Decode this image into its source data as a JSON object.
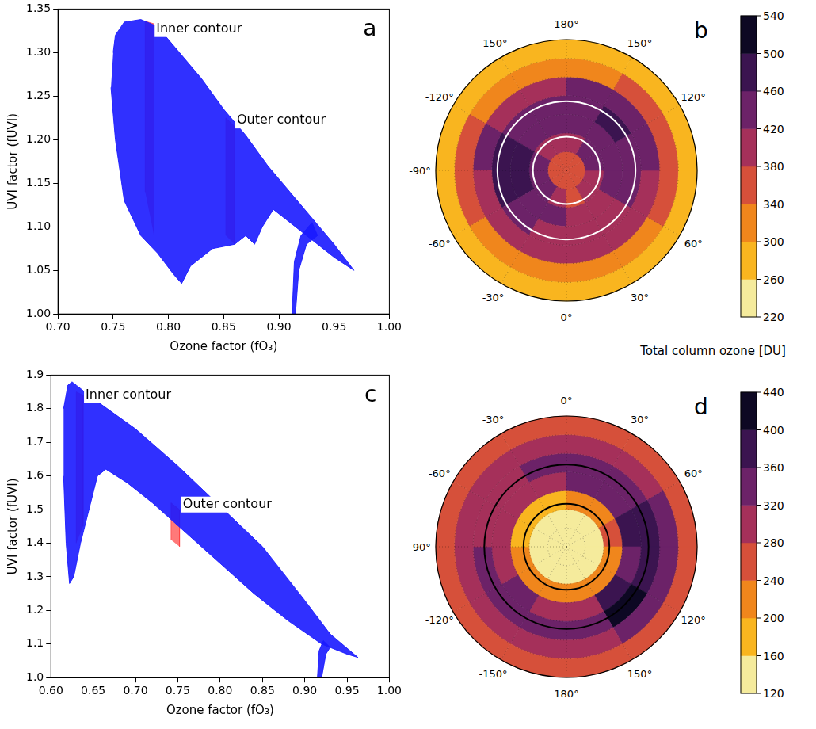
{
  "chart_data": [
    {
      "type": "scatter",
      "panel": "a",
      "x_label": "Ozone factor (fO₃)",
      "y_label": "UVI factor (fUVI)",
      "xlim": [
        0.7,
        1.0
      ],
      "ylim": [
        1.0,
        1.35
      ],
      "xticks": [
        {
          "value": 0.7,
          "label": "0.70"
        },
        {
          "value": 0.75,
          "label": "0.75"
        },
        {
          "value": 0.8,
          "label": "0.80"
        },
        {
          "value": 0.85,
          "label": "0.85"
        },
        {
          "value": 0.9,
          "label": "0.90"
        },
        {
          "value": 0.95,
          "label": "0.95"
        },
        {
          "value": 1.0,
          "label": "1.00"
        }
      ],
      "yticks": [
        {
          "value": 1.0,
          "label": "1.00"
        },
        {
          "value": 1.05,
          "label": "1.05"
        },
        {
          "value": 1.1,
          "label": "1.10"
        },
        {
          "value": 1.15,
          "label": "1.15"
        },
        {
          "value": 1.2,
          "label": "1.20"
        },
        {
          "value": 1.25,
          "label": "1.25"
        },
        {
          "value": 1.3,
          "label": "1.30"
        },
        {
          "value": 1.35,
          "label": "1.35"
        }
      ],
      "grid": false,
      "series": [
        {
          "type": "area",
          "color": "#1a1aff",
          "x": [
            0.75,
            0.752,
            0.76,
            0.775,
            0.79,
            0.81,
            0.83,
            0.85,
            0.87,
            0.89,
            0.91,
            0.93,
            0.95,
            0.968,
            0.95,
            0.93,
            0.91,
            0.895,
            0.885,
            0.878,
            0.87,
            0.86,
            0.84,
            0.82,
            0.812,
            0.805,
            0.79,
            0.775,
            0.76,
            0.752,
            0.748
          ],
          "y": [
            1.3,
            1.32,
            1.335,
            1.338,
            1.33,
            1.3,
            1.27,
            1.235,
            1.205,
            1.17,
            1.14,
            1.11,
            1.08,
            1.05,
            1.065,
            1.085,
            1.105,
            1.12,
            1.1,
            1.08,
            1.09,
            1.08,
            1.075,
            1.055,
            1.035,
            1.045,
            1.07,
            1.09,
            1.13,
            1.2,
            1.26
          ]
        },
        {
          "type": "area",
          "color": "#1a1aff",
          "x": [
            0.912,
            0.914,
            0.92,
            0.93,
            0.935,
            0.925,
            0.918,
            0.915
          ],
          "y": [
            1.0,
            1.06,
            1.09,
            1.105,
            1.09,
            1.08,
            1.05,
            1.0
          ]
        },
        {
          "type": "area",
          "color": "#ff4040",
          "x": [
            0.779,
            0.779,
            0.787,
            0.787
          ],
          "y": [
            1.14,
            1.336,
            1.333,
            1.09
          ]
        },
        {
          "type": "area",
          "color": "#ff4040",
          "x": [
            0.852,
            0.852,
            0.86,
            0.86
          ],
          "y": [
            1.09,
            1.225,
            1.215,
            1.08
          ]
        }
      ],
      "annotations": [
        {
          "text": "Inner contour",
          "x": 0.789,
          "y": 1.327
        },
        {
          "text": "Outer contour",
          "x": 0.862,
          "y": 1.222
        }
      ]
    },
    {
      "type": "map",
      "panel": "b",
      "latlim": [
        20,
        90
      ],
      "lat_edges": [
        90,
        80,
        70,
        60,
        50,
        40,
        30,
        20
      ],
      "lon_edges": [
        -180,
        -150,
        -120,
        -90,
        -60,
        -30,
        0,
        30,
        60,
        90,
        120,
        150,
        180
      ],
      "values": [
        [
          360,
          360,
          370,
          370,
          360,
          350,
          350,
          360,
          360,
          360,
          360,
          360
        ],
        [
          400,
          410,
          440,
          450,
          420,
          390,
          370,
          380,
          400,
          420,
          420,
          400
        ],
        [
          430,
          440,
          470,
          480,
          450,
          420,
          400,
          410,
          420,
          440,
          450,
          430
        ],
        [
          440,
          430,
          460,
          470,
          440,
          410,
          400,
          410,
          430,
          450,
          460,
          450
        ],
        [
          400,
          390,
          420,
          410,
          400,
          380,
          380,
          390,
          410,
          420,
          430,
          420
        ],
        [
          320,
          320,
          340,
          340,
          330,
          320,
          320,
          330,
          340,
          340,
          340,
          330
        ],
        [
          270,
          270,
          280,
          280,
          270,
          270,
          270,
          280,
          280,
          290,
          290,
          280
        ]
      ],
      "lon_labels": [
        {
          "value": 180,
          "label": "180°"
        },
        {
          "value": -150,
          "label": "-150°"
        },
        {
          "value": 150,
          "label": "150°"
        },
        {
          "value": -120,
          "label": "-120°"
        },
        {
          "value": 120,
          "label": "120°"
        },
        {
          "value": -90,
          "label": "-90°"
        },
        {
          "value": 60,
          "label": "60°"
        },
        {
          "value": -60,
          "label": "-60°"
        },
        {
          "value": 30,
          "label": "30°"
        },
        {
          "value": -30,
          "label": "-30°"
        },
        {
          "value": 0,
          "label": "0°"
        }
      ],
      "contours": {
        "values": [
          53,
          72
        ],
        "color": "#ffffff"
      },
      "grid": true,
      "colorbar": {
        "range": [
          220,
          540
        ],
        "ticks": [
          220,
          260,
          300,
          340,
          380,
          420,
          460,
          500,
          540
        ],
        "colors": [
          "#f5eb9c",
          "#f9b51f",
          "#f0861c",
          "#d6503a",
          "#a5305a",
          "#6c2268",
          "#3b1450",
          "#0d0823"
        ],
        "label": "Total column ozone [DU]"
      }
    },
    {
      "type": "scatter",
      "panel": "c",
      "x_label": "Ozone factor (fO₃)",
      "y_label": "UVI factor (fUVI)",
      "xlim": [
        0.6,
        1.0
      ],
      "ylim": [
        1.0,
        1.9
      ],
      "xticks": [
        {
          "value": 0.6,
          "label": "0.60"
        },
        {
          "value": 0.65,
          "label": "0.65"
        },
        {
          "value": 0.7,
          "label": "0.70"
        },
        {
          "value": 0.75,
          "label": "0.75"
        },
        {
          "value": 0.8,
          "label": "0.80"
        },
        {
          "value": 0.85,
          "label": "0.85"
        },
        {
          "value": 0.9,
          "label": "0.90"
        },
        {
          "value": 0.95,
          "label": "0.95"
        },
        {
          "value": 1.0,
          "label": "1.00"
        }
      ],
      "yticks": [
        {
          "value": 1.0,
          "label": "1.0"
        },
        1.1,
        1.2,
        1.3,
        1.4,
        1.5,
        1.6,
        1.7,
        1.8,
        1.9
      ],
      "grid": false,
      "series": [
        {
          "type": "area",
          "color": "#1a1aff",
          "x": [
            0.615,
            0.62,
            0.625,
            0.63,
            0.65,
            0.7,
            0.75,
            0.8,
            0.85,
            0.9,
            0.93,
            0.963,
            0.95,
            0.92,
            0.88,
            0.84,
            0.8,
            0.76,
            0.72,
            0.69,
            0.665,
            0.655,
            0.645,
            0.635,
            0.627,
            0.622,
            0.618,
            0.615
          ],
          "y": [
            1.8,
            1.87,
            1.88,
            1.87,
            1.83,
            1.74,
            1.63,
            1.51,
            1.39,
            1.23,
            1.13,
            1.06,
            1.07,
            1.1,
            1.17,
            1.25,
            1.34,
            1.43,
            1.52,
            1.58,
            1.62,
            1.6,
            1.5,
            1.4,
            1.3,
            1.28,
            1.4,
            1.6
          ]
        },
        {
          "type": "area",
          "color": "#1a1aff",
          "x": [
            0.915,
            0.917,
            0.922,
            0.93,
            0.925,
            0.92
          ],
          "y": [
            1.0,
            1.08,
            1.11,
            1.09,
            1.07,
            1.0
          ]
        },
        {
          "type": "area",
          "color": "#ff4040",
          "x": [
            0.63,
            0.63,
            0.638,
            0.638
          ],
          "y": [
            1.4,
            1.85,
            1.84,
            1.45
          ]
        },
        {
          "type": "area",
          "color": "#ff4040",
          "x": [
            0.742,
            0.742,
            0.752,
            0.752
          ],
          "y": [
            1.41,
            1.52,
            1.5,
            1.39
          ]
        }
      ],
      "annotations": [
        {
          "text": "Inner contour",
          "x": 0.641,
          "y": 1.84
        },
        {
          "text": "Outer contour",
          "x": 0.756,
          "y": 1.515
        }
      ]
    },
    {
      "type": "map",
      "panel": "d",
      "latlim": [
        -90,
        -20
      ],
      "lat_edges": [
        -90,
        -80,
        -70,
        -60,
        -50,
        -40,
        -30,
        -20
      ],
      "lon_edges": [
        -180,
        -150,
        -120,
        -90,
        -60,
        -30,
        0,
        30,
        60,
        90,
        120,
        150,
        180
      ],
      "values": [
        [
          140,
          140,
          140,
          140,
          140,
          140,
          140,
          140,
          140,
          140,
          140,
          140
        ],
        [
          150,
          150,
          150,
          140,
          140,
          140,
          150,
          150,
          150,
          150,
          150,
          150
        ],
        [
          200,
          220,
          200,
          180,
          170,
          180,
          200,
          220,
          240,
          220,
          220,
          210
        ],
        [
          300,
          320,
          300,
          290,
          280,
          300,
          330,
          340,
          360,
          350,
          380,
          310
        ],
        [
          320,
          330,
          320,
          310,
          300,
          320,
          340,
          350,
          360,
          380,
          410,
          340
        ],
        [
          290,
          290,
          290,
          280,
          280,
          290,
          300,
          310,
          320,
          330,
          340,
          300
        ],
        [
          260,
          260,
          260,
          260,
          260,
          260,
          270,
          270,
          270,
          270,
          270,
          260
        ]
      ],
      "lon_labels": [
        {
          "value": 0,
          "label": "0°"
        },
        {
          "value": -30,
          "label": "-30°"
        },
        {
          "value": 30,
          "label": "30°"
        },
        {
          "value": -60,
          "label": "-60°"
        },
        {
          "value": 60,
          "label": "60°"
        },
        {
          "value": -90,
          "label": "-90°"
        },
        {
          "value": -120,
          "label": "-120°"
        },
        {
          "value": 120,
          "label": "120°"
        },
        {
          "value": -150,
          "label": "-150°"
        },
        {
          "value": 150,
          "label": "150°"
        },
        {
          "value": 180,
          "label": "180°"
        }
      ],
      "contours": {
        "values": [
          -46,
          -67
        ],
        "color": "#000000"
      },
      "grid": true,
      "colorbar": {
        "range": [
          120,
          440
        ],
        "ticks": [
          120,
          160,
          200,
          240,
          280,
          320,
          360,
          400,
          440
        ],
        "colors": [
          "#f5eb9c",
          "#f9b51f",
          "#f0861c",
          "#d6503a",
          "#a5305a",
          "#6c2268",
          "#3b1450",
          "#0d0823"
        ]
      }
    }
  ]
}
